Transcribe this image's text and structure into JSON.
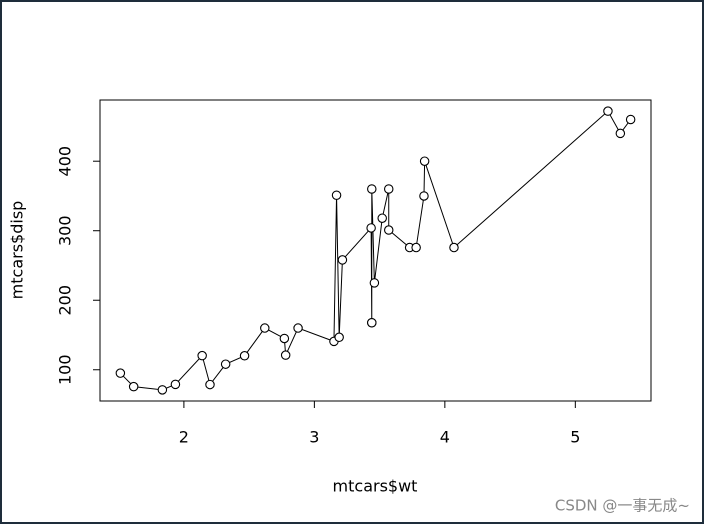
{
  "chart_data": {
    "type": "line",
    "xlabel": "mtcars$wt",
    "ylabel": "mtcars$disp",
    "x": [
      1.513,
      1.615,
      1.835,
      1.935,
      2.14,
      2.2,
      2.32,
      2.465,
      2.62,
      2.77,
      2.78,
      2.875,
      3.15,
      3.17,
      3.19,
      3.215,
      3.435,
      3.44,
      3.44,
      3.44,
      3.46,
      3.52,
      3.57,
      3.57,
      3.73,
      3.78,
      3.84,
      3.845,
      4.07,
      5.25,
      5.345,
      5.424
    ],
    "series": [
      {
        "color": "#000000",
        "values": [
          95.1,
          75.7,
          71.1,
          79,
          120.3,
          78.7,
          108,
          120.1,
          160,
          145,
          121,
          160,
          140.8,
          351,
          146.7,
          258,
          304,
          167.6,
          167.6,
          360,
          225,
          318,
          360,
          301,
          275.8,
          275.8,
          350,
          400,
          275.8,
          472,
          440,
          460
        ]
      }
    ],
    "xlim": [
      1.357,
      5.58
    ],
    "ylim": [
      55.06,
      488.04
    ],
    "xticks": [
      2,
      3,
      4,
      5
    ],
    "yticks": [
      100,
      200,
      300,
      400
    ]
  },
  "watermark": "CSDN @一事无成~"
}
